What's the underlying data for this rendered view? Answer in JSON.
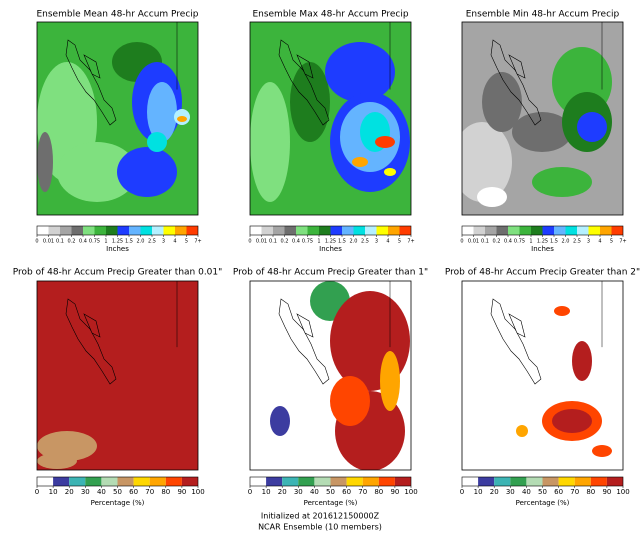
{
  "top_row": {
    "titles": [
      "Ensemble Mean 48-hr Accum Precip",
      "Ensemble Max 48-hr Accum Precip",
      "Ensemble Min 48-hr Accum Precip"
    ],
    "colorbar": {
      "label": "Inches",
      "ticks": [
        "0",
        "0.01",
        "0.1",
        "0.2",
        "0.4",
        "0.75",
        "1",
        "1.25",
        "1.5",
        "2.0",
        "2.5",
        "3",
        "4",
        "5",
        "7+"
      ],
      "colors": [
        "#ffffff",
        "#d2d2d2",
        "#a5a5a5",
        "#6e6e6e",
        "#7fe07f",
        "#3cb43c",
        "#1e7d1e",
        "#1e3cff",
        "#64b4ff",
        "#00e1e1",
        "#b4f0ff",
        "#ffff00",
        "#ffa500",
        "#ff3c00"
      ]
    }
  },
  "bottom_row": {
    "titles": [
      "Prob of 48-hr Accum Precip Greater than 0.01\"",
      "Prob of 48-hr Accum Precip Greater than 1\"",
      "Prob of 48-hr Accum Precip Greater than 2\""
    ],
    "colorbar": {
      "label": "Percentage (%)",
      "ticks": [
        0,
        10,
        20,
        30,
        40,
        50,
        60,
        70,
        80,
        90,
        100
      ],
      "colors": [
        "#ffffff",
        "#3c3ca0",
        "#3cb4b4",
        "#32a050",
        "#b4dcb4",
        "#c89664",
        "#ffd700",
        "#ffa500",
        "#ff4500",
        "#b41e1e"
      ]
    }
  },
  "footer": {
    "line1": "Initialized at 201612150000Z",
    "line2": "NCAR Ensemble (10 members)"
  }
}
